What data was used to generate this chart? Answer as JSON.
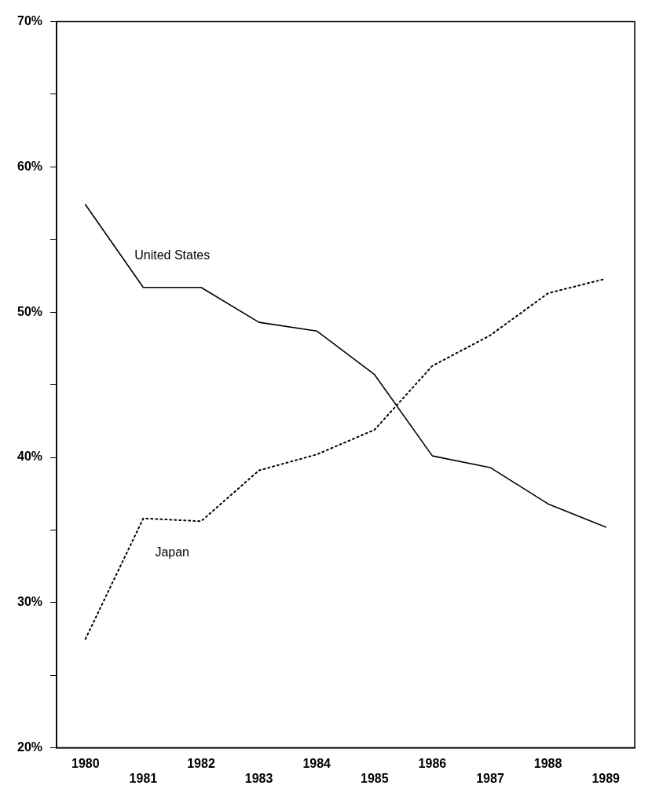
{
  "chart_data": {
    "type": "line",
    "categories": [
      "1980",
      "1981",
      "1982",
      "1983",
      "1984",
      "1985",
      "1986",
      "1987",
      "1988",
      "1989"
    ],
    "series": [
      {
        "name": "United States",
        "color": "#000000",
        "line_style": "solid",
        "values": [
          57.4,
          51.7,
          51.7,
          49.3,
          48.7,
          45.7,
          40.1,
          39.3,
          36.8,
          35.2
        ]
      },
      {
        "name": "Japan",
        "color": "#000000",
        "line_style": "dotted",
        "values": [
          27.5,
          35.8,
          35.6,
          39.1,
          40.2,
          41.9,
          46.3,
          48.4,
          51.3,
          52.3
        ]
      }
    ],
    "ylim": [
      20,
      70
    ],
    "yticks": [
      {
        "value": 20,
        "label": "20%"
      },
      {
        "value": 25,
        "label": null
      },
      {
        "value": 30,
        "label": "30%"
      },
      {
        "value": 35,
        "label": null
      },
      {
        "value": 40,
        "label": "40%"
      },
      {
        "value": 45,
        "label": null
      },
      {
        "value": 50,
        "label": "50%"
      },
      {
        "value": 55,
        "label": null
      },
      {
        "value": 60,
        "label": "60%"
      },
      {
        "value": 65,
        "label": null
      },
      {
        "value": 70,
        "label": "70%"
      }
    ],
    "grid": false,
    "legend": false,
    "marker": "none"
  }
}
